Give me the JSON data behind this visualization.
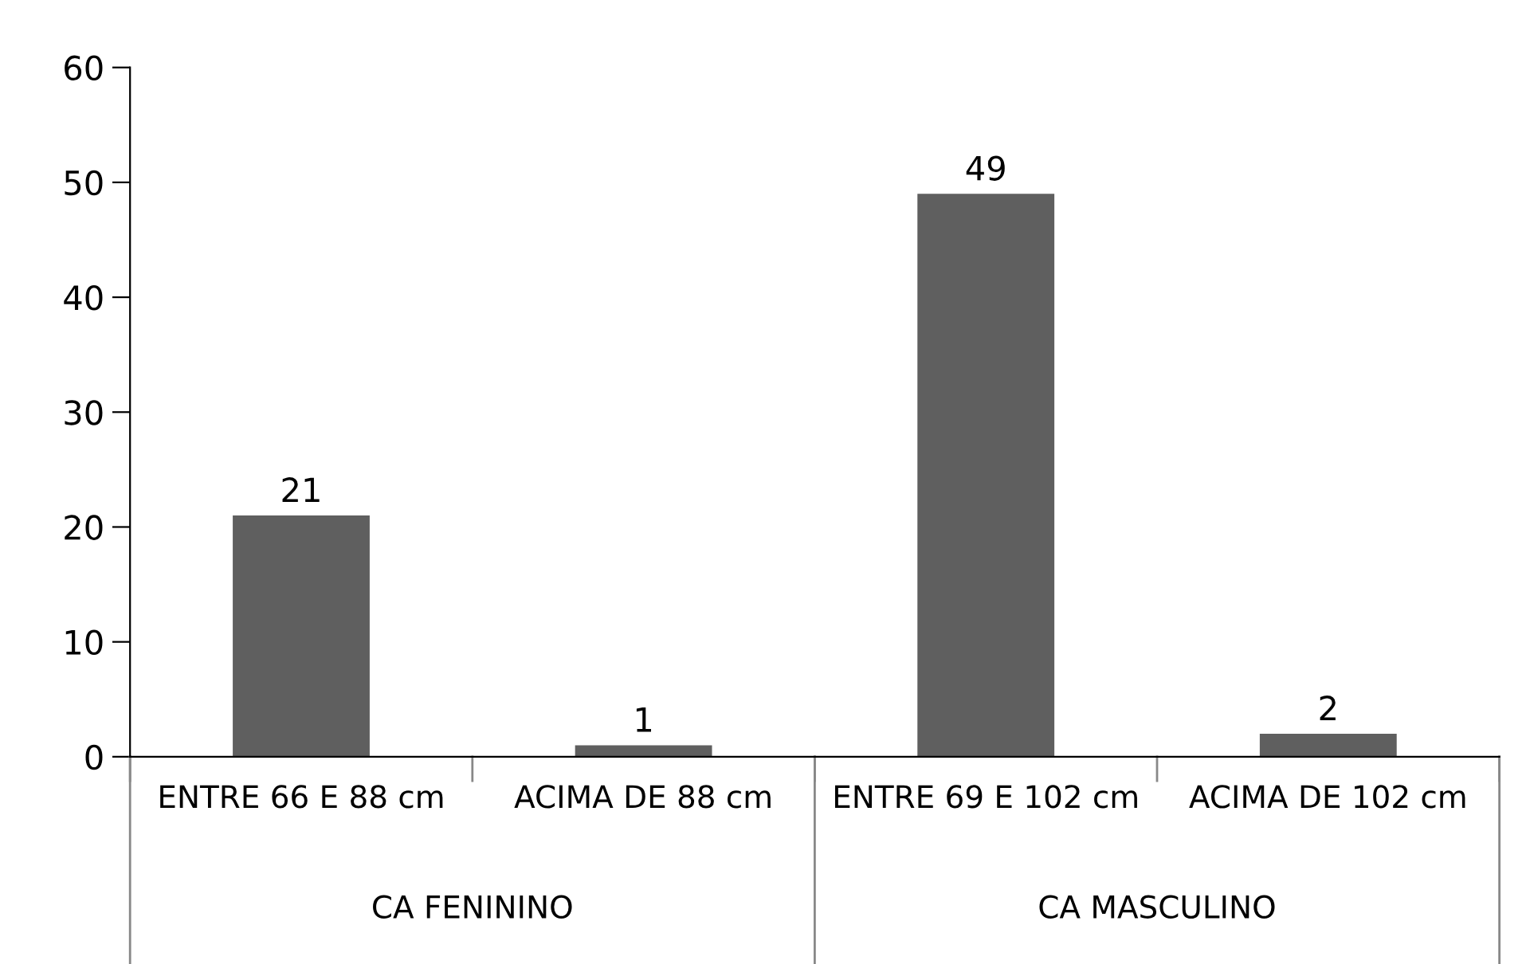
{
  "chart_data": {
    "type": "bar",
    "categories": [
      "ENTRE 66 E 88 cm",
      "ACIMA DE 88 cm",
      "ENTRE 69 E 102 cm",
      "ACIMA DE 102 cm"
    ],
    "values": [
      21,
      1,
      49,
      2
    ],
    "color": "#5f5f5f",
    "ylim": [
      0,
      60
    ],
    "yticks": [
      0,
      10,
      20,
      30,
      40,
      50,
      60
    ],
    "data_labels": true,
    "grid": false,
    "legend": false,
    "annotations": [
      "CA FENININO",
      "CA MASCULINO"
    ]
  }
}
